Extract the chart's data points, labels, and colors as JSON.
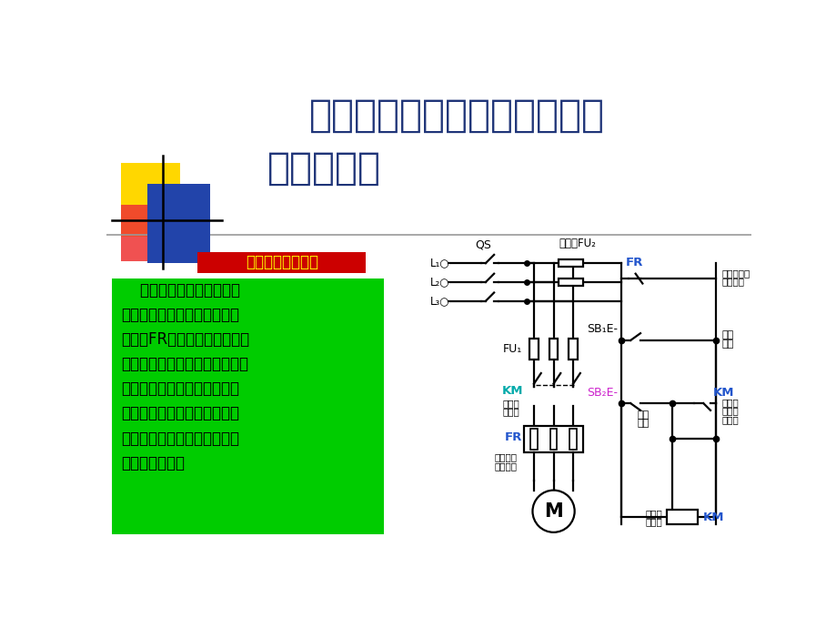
{
  "bg_color": "#FFFFFF",
  "title_line1": "具有过载保护的接触器自锁正",
  "title_line2": "转控制线路",
  "title_color": "#1F3478",
  "title_fontsize": 30,
  "section_label": "一、线路的原理图",
  "section_bg": "#CC0000",
  "section_text_color": "#FFFF00",
  "body_text": "    与接触器自锁正转控制线\n路相比，该线路增加了一只热\n继电器FR，构成了具有过载保\n护的接触器自锁正转控制线路，\n该线路不但有短路保护、欠压\n与失压保护作用，还具有过载\n保护作用，在生产实际中获得\n了广泛的应用。",
  "body_bg": "#00CC00",
  "body_text_color": "#000000"
}
